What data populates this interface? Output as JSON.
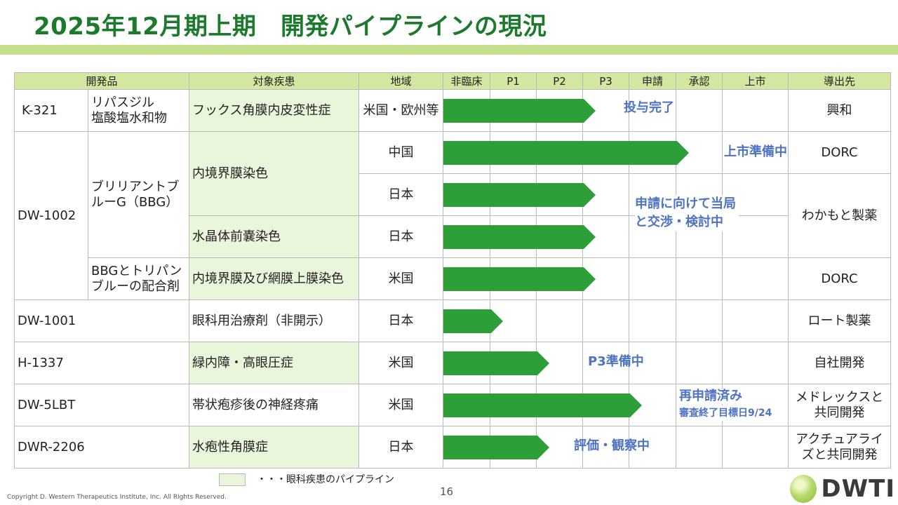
{
  "title": "2025年12月期上期　開発パイプラインの現況",
  "headers": {
    "product": "開発品",
    "disease": "対象疾患",
    "region": "地域",
    "preclinical": "非臨床",
    "p1": "P1",
    "p2": "P2",
    "p3": "P3",
    "filing": "申請",
    "approval": "承認",
    "launch": "上市",
    "partner": "導出先"
  },
  "rows": {
    "k321": {
      "code": "K-321",
      "name": "リパスジル\n塩酸塩水和物",
      "disease": "フックス角膜内皮変性症",
      "region": "米国・欧州等",
      "status": "投与完了",
      "partner": "興和",
      "progress_phase": "P3"
    },
    "dw1002": {
      "code": "DW-1002",
      "name": "ブリリアントブ\nルーG（BBG）",
      "name2": "BBGとトリパン\nブルーの配合剤",
      "disease_ilm": "内境界膜染色",
      "disease_lens": "水晶体前嚢染色",
      "disease_combo": "内境界膜及び網膜上膜染色",
      "region_china": "中国",
      "region_japan1": "日本",
      "region_japan2": "日本",
      "region_us": "米国",
      "status_china": "上市準備中",
      "status_japan": "申請に向けて当局\nと交渉・検討中",
      "partner_china": "DORC",
      "partner_japan": "わかもと製薬",
      "partner_us": "DORC",
      "progress_china": "承認",
      "progress_japan1": "P3",
      "progress_japan2": "P3",
      "progress_us": "P3"
    },
    "dw1001": {
      "code": "DW-1001",
      "disease": "眼科用治療剤（非開示）",
      "region": "日本",
      "partner": "ロート製薬",
      "progress_phase": "P1"
    },
    "h1337": {
      "code": "H-1337",
      "disease": "緑内障・高眼圧症",
      "region": "米国",
      "status": "P3準備中",
      "partner": "自社開発",
      "progress_phase": "P2"
    },
    "dw5lbt": {
      "code": "DW-5LBT",
      "disease": "帯状疱疹後の神経疼痛",
      "region": "米国",
      "status": "再申請済み",
      "status_sub": "審査終了目標日9/24",
      "partner": "メドレックスと\n共同開発",
      "progress_phase": "申請"
    },
    "dwr2206": {
      "code": "DWR-2206",
      "disease": "水疱性角膜症",
      "region": "日本",
      "status": "評価・観察中",
      "partner": "アクチュアライ\nズと共同開発",
      "progress_phase": "P2"
    }
  },
  "legend": {
    "text": "・・・眼科疾患のパイプライン"
  },
  "page_number": "16",
  "copyright": "Copyright D. Western Therapeutics Institute, Inc. All Rights Reserved.",
  "logo": {
    "text": "DWTI"
  },
  "colors": {
    "title": "#1b7a2b",
    "title_bar": "#c6df8d",
    "header_bg": "#d4e7a1",
    "eye_bg": "#eaf6dc",
    "arrow": "#2e9e38",
    "status_text": "#4e72c4"
  }
}
